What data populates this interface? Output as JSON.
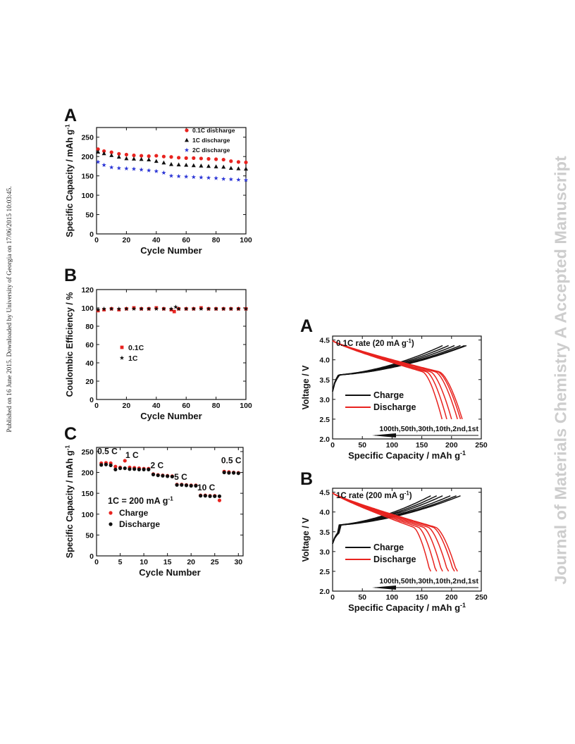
{
  "page": {
    "side_note": "Published on 16 June 2015. Downloaded by University of Georgia on 17/06/2015 10:03:45.",
    "watermark": "Journal of Materials Chemistry A Accepted Manuscript"
  },
  "chart_data": [
    {
      "id": "A1",
      "panel_letter": "A",
      "type": "scatter",
      "xlabel": "Cycle Number",
      "ylabel": "Specific Capacity / mAh g",
      "ylabel_sup": "-1",
      "xlim": [
        0,
        100
      ],
      "ylim": [
        0,
        275
      ],
      "xticks": [
        0,
        20,
        40,
        60,
        80,
        100
      ],
      "yticks": [
        0,
        50,
        100,
        150,
        200,
        250
      ],
      "legend": "top-right",
      "series": [
        {
          "name": "0.1C discharge",
          "color": "#e8231f",
          "marker": "circle",
          "x": [
            1,
            5,
            10,
            15,
            20,
            25,
            30,
            35,
            40,
            45,
            50,
            55,
            60,
            65,
            70,
            75,
            80,
            85,
            90,
            95,
            100
          ],
          "y": [
            219,
            214,
            211,
            207,
            205,
            203,
            202,
            201,
            202,
            200,
            199,
            197,
            196,
            196,
            195,
            194,
            193,
            192,
            188,
            186,
            185
          ]
        },
        {
          "name": "1C  discharge",
          "color": "#111111",
          "marker": "triangle",
          "x": [
            1,
            5,
            10,
            15,
            20,
            25,
            30,
            35,
            40,
            45,
            50,
            55,
            60,
            65,
            70,
            75,
            80,
            85,
            90,
            95,
            100
          ],
          "y": [
            212,
            208,
            203,
            199,
            195,
            194,
            193,
            192,
            188,
            184,
            180,
            179,
            178,
            177,
            176,
            175,
            174,
            173,
            170,
            169,
            168
          ]
        },
        {
          "name": "2C  discharge",
          "color": "#2b35d6",
          "marker": "star",
          "x": [
            1,
            5,
            10,
            15,
            20,
            25,
            30,
            35,
            40,
            45,
            50,
            55,
            60,
            65,
            70,
            75,
            80,
            85,
            90,
            95,
            100
          ],
          "y": [
            186,
            178,
            172,
            170,
            169,
            168,
            166,
            164,
            162,
            158,
            150,
            149,
            148,
            147,
            146,
            145,
            144,
            142,
            141,
            140,
            139
          ]
        }
      ]
    },
    {
      "id": "B1",
      "panel_letter": "B",
      "type": "scatter",
      "xlabel": "Cycle Number",
      "ylabel": "Coulombic Efficiency / %",
      "xlim": [
        0,
        100
      ],
      "ylim": [
        0,
        120
      ],
      "xticks": [
        0,
        20,
        40,
        60,
        80,
        100
      ],
      "yticks": [
        0,
        20,
        40,
        60,
        80,
        100,
        120
      ],
      "legend": "center-left",
      "series": [
        {
          "name": "0.1C",
          "color": "#e8231f",
          "marker": "square",
          "x": [
            1,
            5,
            10,
            15,
            20,
            25,
            30,
            35,
            40,
            45,
            50,
            52,
            55,
            60,
            65,
            70,
            75,
            80,
            85,
            90,
            95,
            100
          ],
          "y": [
            97,
            98,
            99,
            98,
            99,
            100,
            99,
            99,
            100,
            99,
            98,
            96,
            99,
            99,
            99,
            100,
            99,
            99,
            99,
            99,
            99,
            99
          ]
        },
        {
          "name": "1C",
          "color": "#111111",
          "marker": "star",
          "x": [
            1,
            5,
            10,
            15,
            20,
            25,
            30,
            35,
            40,
            45,
            50,
            53,
            55,
            60,
            65,
            70,
            75,
            80,
            85,
            90,
            95,
            100
          ],
          "y": [
            98,
            99,
            99,
            99,
            99,
            99,
            99,
            99,
            99,
            99,
            99,
            101,
            99,
            99,
            99,
            99,
            99,
            99,
            99,
            99,
            99,
            99
          ]
        }
      ]
    },
    {
      "id": "C1",
      "panel_letter": "C",
      "type": "scatter",
      "xlabel": "Cycle Number",
      "ylabel": "Specific Capacity / mAh g",
      "ylabel_sup": "-1",
      "xlim": [
        0,
        31
      ],
      "ylim": [
        0,
        260
      ],
      "xticks": [
        0,
        5,
        10,
        15,
        20,
        25,
        30
      ],
      "yticks": [
        0,
        50,
        100,
        150,
        200,
        250
      ],
      "legend": "center-left",
      "rate_note": "1C = 200 mA g",
      "rate_note_sup": "-1",
      "annotations": [
        {
          "text": "0.5 C",
          "x": 2.3,
          "y": 244
        },
        {
          "text": "1 C",
          "x": 7.5,
          "y": 235
        },
        {
          "text": "2 C",
          "x": 12.8,
          "y": 210
        },
        {
          "text": "5 C",
          "x": 17.8,
          "y": 182
        },
        {
          "text": "10 C",
          "x": 23.2,
          "y": 157
        },
        {
          "text": "0.5 C",
          "x": 28.5,
          "y": 222
        }
      ],
      "series": [
        {
          "name": "Charge",
          "color": "#e8231f",
          "marker": "circle",
          "x": [
            1,
            2,
            3,
            4,
            5,
            6,
            7,
            8,
            9,
            10,
            11,
            12,
            13,
            14,
            15,
            16,
            17,
            18,
            19,
            20,
            21,
            22,
            23,
            24,
            25,
            26,
            27,
            28,
            29,
            30
          ],
          "y": [
            222,
            223,
            222,
            214,
            212,
            228,
            212,
            211,
            210,
            209,
            209,
            196,
            194,
            193,
            192,
            191,
            171,
            171,
            170,
            169,
            169,
            145,
            145,
            144,
            144,
            133,
            202,
            201,
            200,
            199
          ]
        },
        {
          "name": "Discharge",
          "color": "#111111",
          "marker": "circle",
          "x": [
            1,
            2,
            3,
            4,
            5,
            6,
            7,
            8,
            9,
            10,
            11,
            12,
            13,
            14,
            15,
            16,
            17,
            18,
            19,
            20,
            21,
            22,
            23,
            24,
            25,
            26,
            27,
            28,
            29,
            30
          ],
          "y": [
            218,
            219,
            217,
            207,
            210,
            210,
            208,
            208,
            207,
            207,
            207,
            195,
            193,
            192,
            191,
            190,
            170,
            170,
            169,
            168,
            168,
            144,
            144,
            143,
            143,
            143,
            200,
            199,
            199,
            198
          ]
        }
      ]
    },
    {
      "id": "A2",
      "panel_letter": "A",
      "type": "line",
      "xlabel": "Specific Capacity / mAh g",
      "xlabel_sup": "-1",
      "ylabel": "Voltage / V",
      "inset_title": "0.1C rate (20 mA g",
      "inset_title_sup": "-1",
      "inset_title_close": ")",
      "cycles_label": "100th,50th,30th,10th,2nd,1st",
      "xlim": [
        0,
        250
      ],
      "ylim": [
        2.0,
        4.6
      ],
      "xticks": [
        0,
        50,
        100,
        150,
        200,
        250
      ],
      "yticks": [
        2.0,
        2.5,
        3.0,
        3.5,
        4.0,
        4.5
      ],
      "legend": "center",
      "legend_entries": [
        {
          "name": "Charge",
          "color": "#111111"
        },
        {
          "name": "Discharge",
          "color": "#e8231f"
        }
      ],
      "charge_capacity": [
        225,
        222,
        215,
        205,
        195,
        185
      ],
      "discharge_capacity": [
        218,
        215,
        210,
        200,
        192,
        184
      ]
    },
    {
      "id": "B2",
      "panel_letter": "B",
      "type": "line",
      "xlabel": "Specific Capacity / mAh g",
      "xlabel_sup": "-1",
      "ylabel": "Voltage / V",
      "inset_title": "1C rate (200 mA g",
      "inset_title_sup": "-1",
      "inset_title_close": ")",
      "cycles_label": "100th,50th,30th,10th,2nd,1st",
      "xlim": [
        0,
        250
      ],
      "ylim": [
        2.0,
        4.6
      ],
      "xticks": [
        0,
        50,
        100,
        150,
        200,
        250
      ],
      "yticks": [
        2.0,
        2.5,
        3.0,
        3.5,
        4.0,
        4.5
      ],
      "legend": "center",
      "legend_entries": [
        {
          "name": "Charge",
          "color": "#111111"
        },
        {
          "name": "Discharge",
          "color": "#e8231f"
        }
      ],
      "charge_capacity": [
        215,
        208,
        198,
        185,
        175,
        165
      ],
      "discharge_capacity": [
        210,
        205,
        195,
        185,
        175,
        165
      ]
    }
  ]
}
